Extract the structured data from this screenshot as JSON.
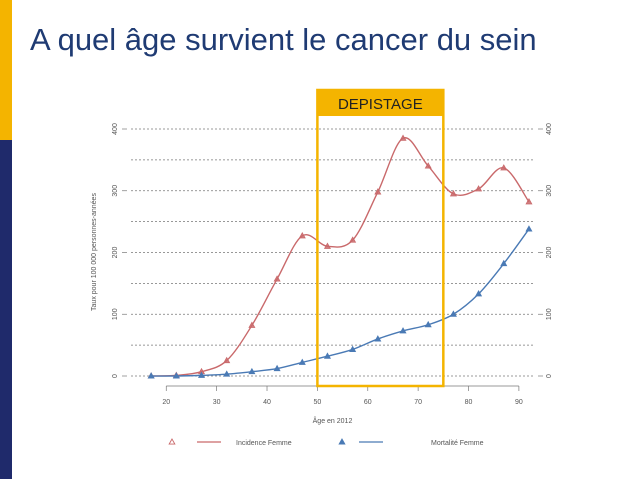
{
  "slide": {
    "title": "A quel âge survient le cancer du sein",
    "accent_color": "#f4b400",
    "navy_color": "#1f2a6b",
    "title_color": "#1f3b73"
  },
  "chart_data": {
    "type": "line",
    "title": "",
    "xlabel": "Âge en 2012",
    "ylabel": "Taux pour 100 000 personnes-années",
    "xlim": [
      13,
      93
    ],
    "ylim": [
      0,
      400
    ],
    "x_ticks": [
      20,
      30,
      40,
      50,
      60,
      70,
      80,
      90
    ],
    "y_ticks": [
      0,
      100,
      200,
      300,
      400
    ],
    "grid": true,
    "legend_position": "bottom",
    "annotation": {
      "label": "DEPISTAGE",
      "x_range": [
        50,
        75
      ],
      "color": "#f4b400"
    },
    "series": [
      {
        "name": "Incidence Femme",
        "color": "#c9696b",
        "marker": "open-triangle",
        "x": [
          17,
          22,
          27,
          32,
          37,
          42,
          47,
          52,
          57,
          62,
          67,
          72,
          77,
          82,
          87,
          92
        ],
        "y": [
          0,
          1,
          7,
          25,
          82,
          157,
          227,
          210,
          220,
          298,
          385,
          340,
          295,
          303,
          337,
          282
        ]
      },
      {
        "name": "Mortalité Femme",
        "color": "#4a7ab5",
        "marker": "filled-triangle",
        "x": [
          17,
          22,
          27,
          32,
          37,
          42,
          47,
          52,
          57,
          62,
          67,
          72,
          77,
          82,
          87,
          92
        ],
        "y": [
          0,
          0,
          1,
          3,
          7,
          12,
          22,
          32,
          43,
          60,
          73,
          83,
          100,
          133,
          182,
          238
        ]
      }
    ]
  }
}
